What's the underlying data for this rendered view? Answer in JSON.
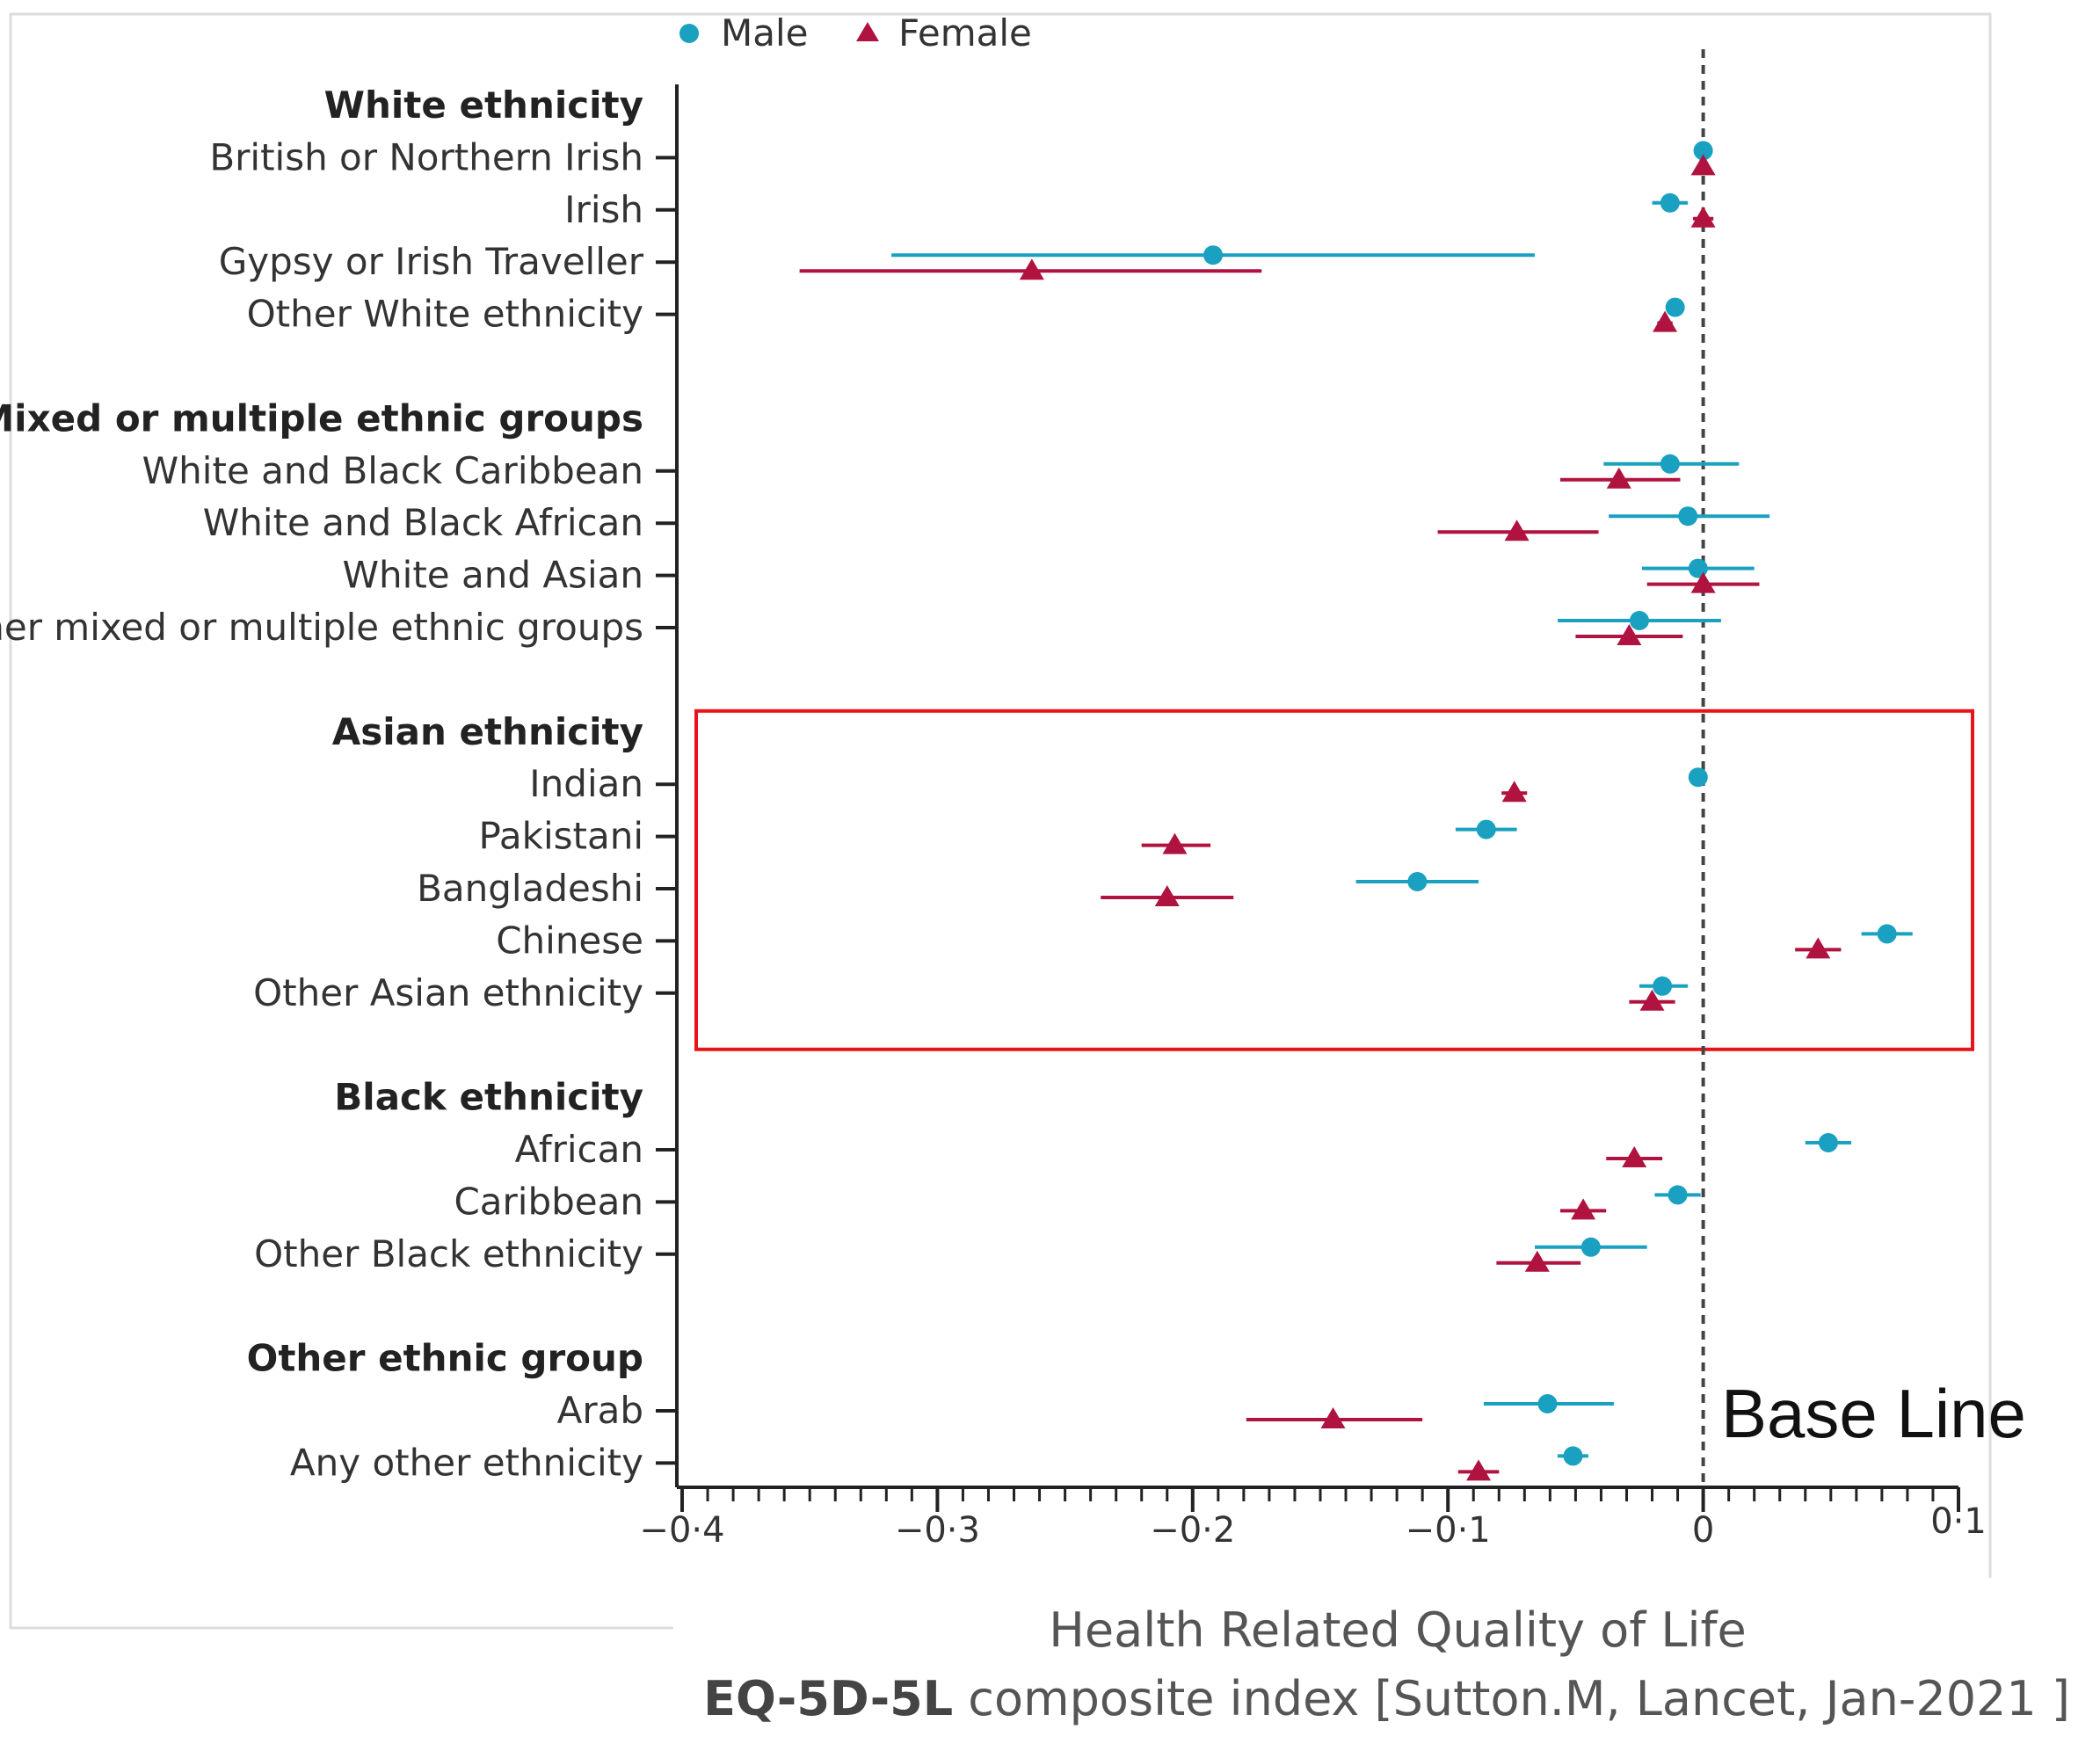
{
  "chart_data": {
    "type": "scatter",
    "subtype": "forest-plot",
    "x_axis": {
      "ticks": [
        -0.4,
        -0.3,
        -0.2,
        -0.1,
        0,
        0.1
      ],
      "tick_labels": [
        "−0·4",
        "−0·3",
        "−0·2",
        "−0·1",
        "0",
        "0·1"
      ],
      "xlim": [
        -0.4,
        0.1
      ],
      "minor_step": 0.01
    },
    "xlabel_line1": "Health Related Quality of Life",
    "xlabel_line2_bold": "EQ-5D-5L",
    "xlabel_line2_rest": " composite index  [Sutton.M, Lancet, Jan-2021 ]",
    "annotation": "Base Line",
    "baseline_x": 0,
    "legend": [
      {
        "name": "Male",
        "marker": "circle",
        "color": "#1aa0c0"
      },
      {
        "name": "Female",
        "marker": "triangle",
        "color": "#b0133f"
      }
    ],
    "groups": [
      {
        "name": "White ethnicity",
        "highlight": false,
        "items": [
          {
            "label": "British or Northern Irish",
            "male": {
              "est": 0.0,
              "lo": 0.0,
              "hi": 0.0
            },
            "female": {
              "est": 0.0,
              "lo": 0.0,
              "hi": 0.0
            }
          },
          {
            "label": "Irish",
            "male": {
              "est": -0.013,
              "lo": -0.02,
              "hi": -0.006
            },
            "female": {
              "est": 0.0,
              "lo": -0.004,
              "hi": 0.004
            }
          },
          {
            "label": "Gypsy or Irish Traveller",
            "male": {
              "est": -0.192,
              "lo": -0.318,
              "hi": -0.066
            },
            "female": {
              "est": -0.263,
              "lo": -0.354,
              "hi": -0.173
            }
          },
          {
            "label": "Other White ethnicity",
            "male": {
              "est": -0.011,
              "lo": -0.014,
              "hi": -0.008
            },
            "female": {
              "est": -0.015,
              "lo": -0.018,
              "hi": -0.012
            }
          }
        ]
      },
      {
        "name": "Mixed or multiple ethnic groups",
        "highlight": false,
        "items": [
          {
            "label": "White and Black Caribbean",
            "male": {
              "est": -0.013,
              "lo": -0.039,
              "hi": 0.014
            },
            "female": {
              "est": -0.033,
              "lo": -0.056,
              "hi": -0.009
            }
          },
          {
            "label": "White and Black African",
            "male": {
              "est": -0.006,
              "lo": -0.037,
              "hi": 0.026
            },
            "female": {
              "est": -0.073,
              "lo": -0.104,
              "hi": -0.041
            }
          },
          {
            "label": "White and Asian",
            "male": {
              "est": -0.002,
              "lo": -0.024,
              "hi": 0.02
            },
            "female": {
              "est": 0.0,
              "lo": -0.022,
              "hi": 0.022
            }
          },
          {
            "label": "Other mixed or multiple ethnic groups",
            "male": {
              "est": -0.025,
              "lo": -0.057,
              "hi": 0.007
            },
            "female": {
              "est": -0.029,
              "lo": -0.05,
              "hi": -0.008
            }
          }
        ]
      },
      {
        "name": "Asian ethnicity",
        "highlight": true,
        "items": [
          {
            "label": "Indian",
            "male": {
              "est": -0.002,
              "lo": -0.005,
              "hi": 0.001
            },
            "female": {
              "est": -0.074,
              "lo": -0.079,
              "hi": -0.069
            }
          },
          {
            "label": "Pakistani",
            "male": {
              "est": -0.085,
              "lo": -0.097,
              "hi": -0.073
            },
            "female": {
              "est": -0.207,
              "lo": -0.22,
              "hi": -0.193
            }
          },
          {
            "label": "Bangladeshi",
            "male": {
              "est": -0.112,
              "lo": -0.136,
              "hi": -0.088
            },
            "female": {
              "est": -0.21,
              "lo": -0.236,
              "hi": -0.184
            }
          },
          {
            "label": "Chinese",
            "male": {
              "est": 0.072,
              "lo": 0.062,
              "hi": 0.082
            },
            "female": {
              "est": 0.045,
              "lo": 0.036,
              "hi": 0.054
            }
          },
          {
            "label": "Other Asian ethnicity",
            "male": {
              "est": -0.016,
              "lo": -0.025,
              "hi": -0.006
            },
            "female": {
              "est": -0.02,
              "lo": -0.029,
              "hi": -0.011
            }
          }
        ]
      },
      {
        "name": "Black ethnicity",
        "highlight": false,
        "items": [
          {
            "label": "African",
            "male": {
              "est": 0.049,
              "lo": 0.04,
              "hi": 0.058
            },
            "female": {
              "est": -0.027,
              "lo": -0.038,
              "hi": -0.016
            }
          },
          {
            "label": "Caribbean",
            "male": {
              "est": -0.01,
              "lo": -0.019,
              "hi": -0.001
            },
            "female": {
              "est": -0.047,
              "lo": -0.056,
              "hi": -0.038
            }
          },
          {
            "label": "Other Black ethnicity",
            "male": {
              "est": -0.044,
              "lo": -0.066,
              "hi": -0.022
            },
            "female": {
              "est": -0.065,
              "lo": -0.081,
              "hi": -0.048
            }
          }
        ]
      },
      {
        "name": "Other ethnic group",
        "highlight": false,
        "items": [
          {
            "label": "Arab",
            "male": {
              "est": -0.061,
              "lo": -0.086,
              "hi": -0.035
            },
            "female": {
              "est": -0.145,
              "lo": -0.179,
              "hi": -0.11
            }
          },
          {
            "label": "Any other ethnicity",
            "male": {
              "est": -0.051,
              "lo": -0.057,
              "hi": -0.045
            },
            "female": {
              "est": -0.088,
              "lo": -0.096,
              "hi": -0.08
            }
          }
        ]
      }
    ],
    "colors": {
      "male": "#1aa0c0",
      "female": "#b0133f",
      "highlight_box": "#e8141a",
      "axis": "#222222",
      "baseline": "#444444"
    }
  }
}
